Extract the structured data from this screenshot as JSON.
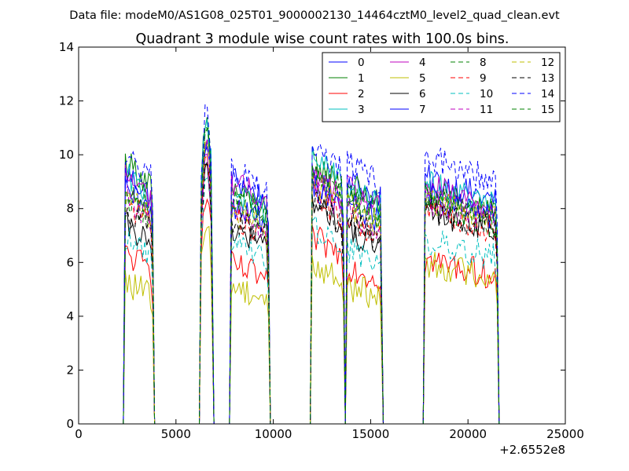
{
  "figure": {
    "suptitle": "Data file: modeM0/AS1G08_025T01_9000002130_14464cztM0_level2_quad_clean.evt"
  },
  "chart_data": {
    "type": "line",
    "title": "Quadrant 3 module wise count rates with 100.0s bins.",
    "xlabel": "",
    "ylabel": "",
    "x_offset_label": "+2.6552e8",
    "xlim": [
      0,
      25000
    ],
    "ylim": [
      0,
      14
    ],
    "xticks": [
      0,
      5000,
      10000,
      15000,
      20000,
      25000
    ],
    "yticks": [
      0,
      2,
      4,
      6,
      8,
      10,
      12,
      14
    ],
    "grid": false,
    "legend_position": "top-right",
    "legend_columns": 4,
    "segments": [
      {
        "start": 2400,
        "end": 3800
      },
      {
        "start": 6300,
        "end": 6850
      },
      {
        "start": 7850,
        "end": 9750
      },
      {
        "start": 12000,
        "end": 13600
      },
      {
        "start": 13800,
        "end": 15550
      },
      {
        "start": 17800,
        "end": 21500
      }
    ],
    "series": [
      {
        "name": "0",
        "color": "#0000ff",
        "style": "solid",
        "levels": [
          8.9,
          9.6,
          8.7,
          8.6,
          8.7,
          8.7
        ]
      },
      {
        "name": "1",
        "color": "#008000",
        "style": "solid",
        "levels": [
          9.3,
          10.4,
          8.3,
          9.3,
          8.5,
          8.2
        ]
      },
      {
        "name": "2",
        "color": "#ff0000",
        "style": "solid",
        "levels": [
          6.0,
          7.6,
          5.6,
          6.6,
          5.6,
          5.8
        ]
      },
      {
        "name": "3",
        "color": "#00bfbf",
        "style": "solid",
        "levels": [
          8.8,
          10.3,
          8.2,
          9.4,
          8.4,
          8.5
        ]
      },
      {
        "name": "4",
        "color": "#bf00bf",
        "style": "solid",
        "levels": [
          8.8,
          9.6,
          8.6,
          8.8,
          8.3,
          8.4
        ]
      },
      {
        "name": "5",
        "color": "#bfbf00",
        "style": "solid",
        "levels": [
          5.0,
          6.6,
          4.9,
          5.6,
          4.9,
          5.7
        ]
      },
      {
        "name": "6",
        "color": "#000000",
        "style": "solid",
        "levels": [
          7.0,
          8.8,
          6.9,
          7.8,
          6.8,
          7.6
        ]
      },
      {
        "name": "7",
        "color": "#0000ff",
        "style": "solid",
        "levels": [
          8.2,
          9.3,
          7.8,
          8.5,
          7.9,
          8.0
        ]
      },
      {
        "name": "8",
        "color": "#008000",
        "style": "dashed",
        "levels": [
          8.1,
          9.9,
          7.9,
          8.9,
          7.9,
          7.8
        ]
      },
      {
        "name": "9",
        "color": "#ff0000",
        "style": "dashed",
        "levels": [
          7.8,
          9.0,
          7.4,
          8.1,
          7.3,
          7.6
        ]
      },
      {
        "name": "10",
        "color": "#00bfbf",
        "style": "dashed",
        "levels": [
          6.6,
          8.2,
          6.4,
          7.0,
          6.2,
          6.5
        ]
      },
      {
        "name": "11",
        "color": "#bf00bf",
        "style": "dashed",
        "levels": [
          8.0,
          9.0,
          7.5,
          8.5,
          7.6,
          7.9
        ]
      },
      {
        "name": "12",
        "color": "#bfbf00",
        "style": "dashed",
        "levels": [
          8.0,
          9.4,
          7.6,
          8.6,
          7.8,
          8.0
        ]
      },
      {
        "name": "13",
        "color": "#000000",
        "style": "dashed",
        "levels": [
          7.6,
          8.6,
          7.3,
          7.8,
          7.2,
          7.6
        ]
      },
      {
        "name": "14",
        "color": "#0000ff",
        "style": "dashed",
        "levels": [
          9.5,
          10.6,
          9.0,
          9.8,
          9.3,
          9.5
        ]
      },
      {
        "name": "15",
        "color": "#008000",
        "style": "dashed",
        "levels": [
          8.5,
          9.8,
          8.1,
          9.1,
          8.1,
          8.2
        ]
      }
    ]
  }
}
